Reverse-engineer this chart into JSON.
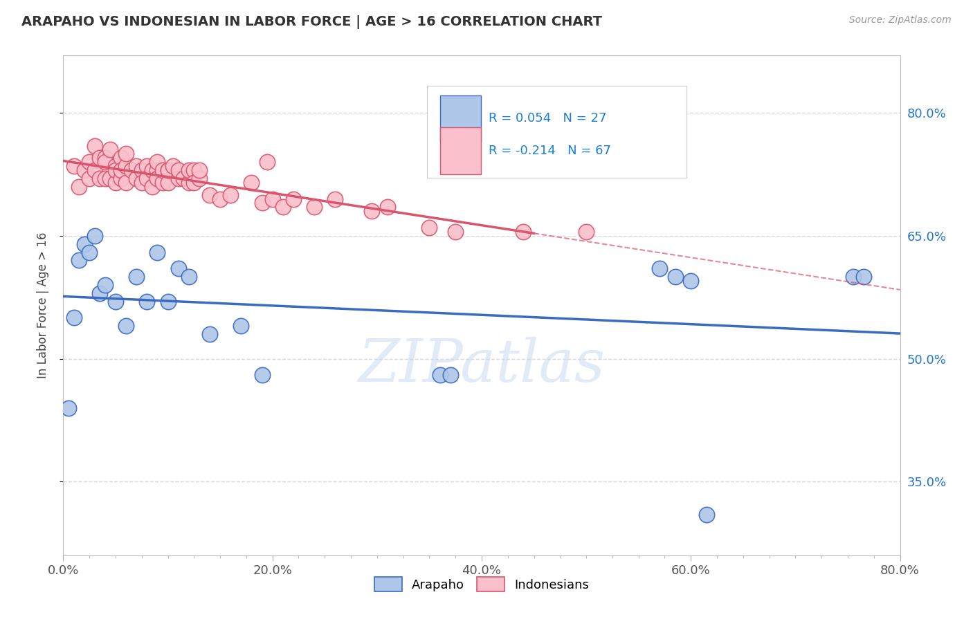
{
  "title": "ARAPAHO VS INDONESIAN IN LABOR FORCE | AGE > 16 CORRELATION CHART",
  "source_text": "Source: ZipAtlas.com",
  "ylabel": "In Labor Force | Age > 16",
  "xlim": [
    0.0,
    0.8
  ],
  "ylim": [
    0.26,
    0.87
  ],
  "xtick_labels": [
    "0.0%",
    "",
    "",
    "",
    "",
    "",
    "",
    "",
    "20.0%",
    "",
    "",
    "",
    "",
    "",
    "",
    "",
    "40.0%",
    "",
    "",
    "",
    "",
    "",
    "",
    "",
    "60.0%",
    "",
    "",
    "",
    "",
    "",
    "",
    "",
    "80.0%"
  ],
  "xtick_values": [
    0.0,
    0.025,
    0.05,
    0.075,
    0.1,
    0.125,
    0.15,
    0.175,
    0.2,
    0.225,
    0.25,
    0.275,
    0.3,
    0.325,
    0.35,
    0.375,
    0.4,
    0.425,
    0.45,
    0.475,
    0.5,
    0.525,
    0.55,
    0.575,
    0.6,
    0.625,
    0.65,
    0.675,
    0.7,
    0.725,
    0.75,
    0.775,
    0.8
  ],
  "ytick_labels": [
    "35.0%",
    "50.0%",
    "65.0%",
    "80.0%"
  ],
  "ytick_values": [
    0.35,
    0.5,
    0.65,
    0.8
  ],
  "arapaho_R": 0.054,
  "arapaho_N": 27,
  "indonesian_R": -0.214,
  "indonesian_N": 67,
  "arapaho_color": "#aec6e8",
  "indonesian_color": "#f9c0cb",
  "arapaho_line_color": "#3a6bbf",
  "indonesian_line_color": "#d9556e",
  "watermark_text": "ZIPatlas",
  "background_color": "#ffffff",
  "grid_color": "#d8d8d8",
  "arapaho_x": [
    0.005,
    0.01,
    0.015,
    0.02,
    0.025,
    0.03,
    0.035,
    0.04,
    0.05,
    0.06,
    0.07,
    0.08,
    0.09,
    0.1,
    0.11,
    0.12,
    0.14,
    0.17,
    0.19,
    0.36,
    0.37,
    0.57,
    0.585,
    0.6,
    0.615,
    0.755,
    0.765
  ],
  "arapaho_y": [
    0.44,
    0.55,
    0.62,
    0.64,
    0.63,
    0.65,
    0.58,
    0.59,
    0.57,
    0.54,
    0.6,
    0.57,
    0.63,
    0.57,
    0.61,
    0.6,
    0.53,
    0.54,
    0.48,
    0.48,
    0.48,
    0.61,
    0.6,
    0.595,
    0.31,
    0.6,
    0.6
  ],
  "indonesian_x": [
    0.01,
    0.015,
    0.02,
    0.025,
    0.025,
    0.03,
    0.03,
    0.035,
    0.035,
    0.04,
    0.04,
    0.04,
    0.045,
    0.045,
    0.05,
    0.05,
    0.05,
    0.055,
    0.055,
    0.055,
    0.06,
    0.06,
    0.06,
    0.065,
    0.07,
    0.07,
    0.075,
    0.075,
    0.08,
    0.08,
    0.085,
    0.085,
    0.09,
    0.09,
    0.09,
    0.095,
    0.095,
    0.1,
    0.1,
    0.1,
    0.105,
    0.11,
    0.11,
    0.115,
    0.12,
    0.12,
    0.125,
    0.125,
    0.13,
    0.13,
    0.14,
    0.15,
    0.16,
    0.18,
    0.19,
    0.195,
    0.2,
    0.21,
    0.22,
    0.24,
    0.26,
    0.295,
    0.31,
    0.35,
    0.375,
    0.44,
    0.5
  ],
  "indonesian_y": [
    0.735,
    0.71,
    0.73,
    0.74,
    0.72,
    0.76,
    0.73,
    0.745,
    0.72,
    0.745,
    0.72,
    0.74,
    0.755,
    0.72,
    0.735,
    0.715,
    0.73,
    0.745,
    0.72,
    0.73,
    0.735,
    0.75,
    0.715,
    0.73,
    0.735,
    0.72,
    0.73,
    0.715,
    0.735,
    0.72,
    0.73,
    0.71,
    0.73,
    0.72,
    0.74,
    0.715,
    0.73,
    0.715,
    0.73,
    0.73,
    0.735,
    0.72,
    0.73,
    0.72,
    0.715,
    0.73,
    0.73,
    0.715,
    0.72,
    0.73,
    0.7,
    0.695,
    0.7,
    0.715,
    0.69,
    0.74,
    0.695,
    0.685,
    0.695,
    0.685,
    0.695,
    0.68,
    0.685,
    0.66,
    0.655,
    0.655,
    0.655
  ]
}
